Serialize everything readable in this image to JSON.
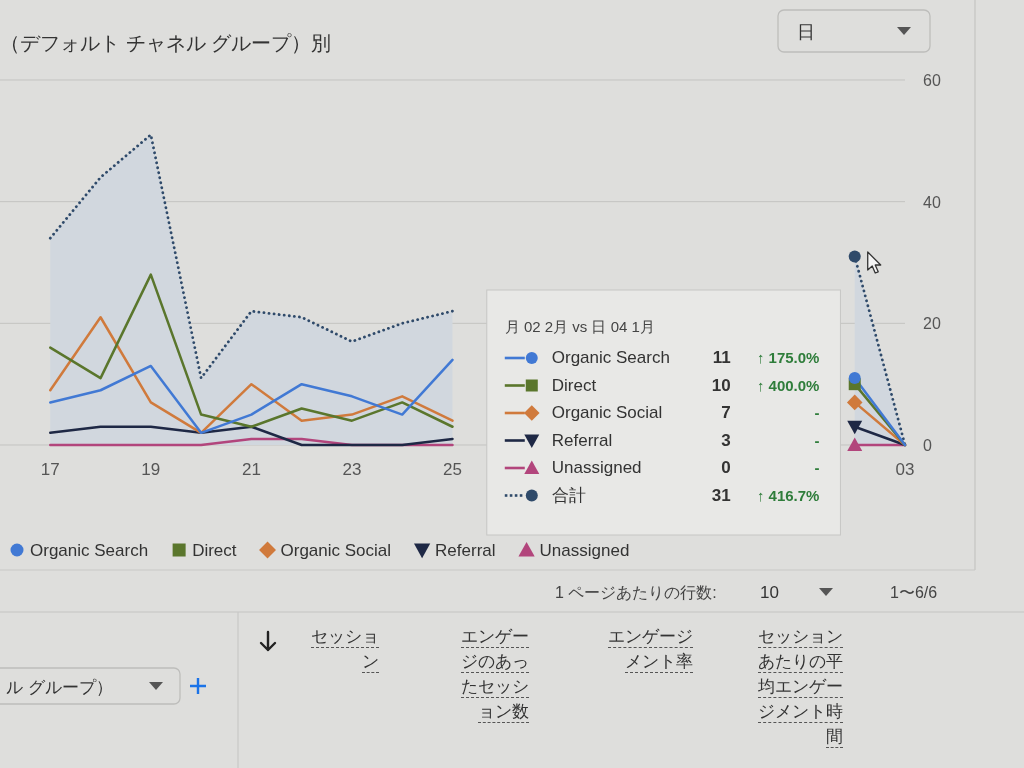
{
  "chart_data": {
    "type": "line",
    "title": "（デフォルト チャネル グループ）別",
    "x": [
      "--01-17",
      "--01-18",
      "--01-19",
      "--01-20",
      "--01-21",
      "--01-22",
      "--01-23",
      "--01-24",
      "--01-25",
      "--01-26",
      "--02-01",
      "--02-02",
      "--02-03"
    ],
    "xlim": [
      "--01-16",
      "--02-03"
    ],
    "xticks": [
      {
        "value": "--01-17",
        "label": "17"
      },
      {
        "value": "--01-19",
        "label": "19"
      },
      {
        "value": "--01-21",
        "label": "21"
      },
      {
        "value": "--01-23",
        "label": "23"
      },
      {
        "value": "--01-25",
        "label": "25"
      },
      {
        "value": "--02-03",
        "label": "03"
      }
    ],
    "series": [
      {
        "name": "Organic Search",
        "color": "#4179d4",
        "values": [
          7,
          9,
          13,
          2,
          5,
          10,
          8,
          5,
          14,
          null,
          null,
          11,
          0
        ]
      },
      {
        "name": "Direct",
        "color": "#5a762c",
        "values": [
          16,
          11,
          28,
          5,
          3,
          6,
          4,
          7,
          3,
          null,
          null,
          10,
          0
        ]
      },
      {
        "name": "Organic Social",
        "color": "#d07a3c",
        "values": [
          9,
          21,
          7,
          2,
          10,
          4,
          5,
          8,
          4,
          null,
          null,
          7,
          0
        ]
      },
      {
        "name": "Referral",
        "color": "#1e2845",
        "values": [
          2,
          3,
          3,
          2,
          3,
          0,
          0,
          0,
          1,
          null,
          null,
          3,
          0
        ]
      },
      {
        "name": "Unassigned",
        "color": "#b2457c",
        "values": [
          0,
          0,
          0,
          0,
          1,
          1,
          0,
          0,
          0,
          null,
          null,
          0,
          0
        ]
      },
      {
        "name": "合計",
        "type": "area",
        "color": "#2f4a6a",
        "line_style": "dotted",
        "values": [
          34,
          44,
          51,
          11,
          22,
          21,
          17,
          20,
          22,
          null,
          null,
          31,
          0
        ]
      },
      {
        "type": "scatter",
        "color": "#4179d4",
        "marker": "circle",
        "x": [
          "--02-02"
        ],
        "values": [
          11
        ]
      },
      {
        "type": "scatter",
        "color": "#5a762c",
        "marker": "square",
        "x": [
          "--02-02"
        ],
        "values": [
          10
        ]
      },
      {
        "type": "scatter",
        "color": "#d07a3c",
        "marker": "diamond",
        "x": [
          "--02-02"
        ],
        "values": [
          7
        ]
      },
      {
        "type": "scatter",
        "color": "#1e2845",
        "marker": "triangle-down",
        "x": [
          "--02-02"
        ],
        "values": [
          3
        ]
      },
      {
        "type": "scatter",
        "color": "#b2457c",
        "marker": "triangle",
        "x": [
          "--02-02"
        ],
        "values": [
          0
        ]
      },
      {
        "type": "scatter",
        "color": "#2f4a6a",
        "marker": "circle",
        "x": [
          "--02-02"
        ],
        "values": [
          31
        ]
      }
    ],
    "ylim": [
      0,
      60
    ],
    "yticks": [
      0,
      20,
      40,
      60
    ],
    "grid": "y",
    "legend": "bottom",
    "annotations": [
      "月 02 2月 vs 日 04 1月",
      "11",
      "↑ 175.0%",
      "10",
      "↑ 400.0%",
      "7",
      "-",
      "3",
      "-",
      "0",
      "-",
      "31",
      "↑ 416.7%",
      "日",
      "1 ページあたりの行数:",
      "10",
      "1〜6/6",
      "ル グループ）",
      "セッション",
      "エンゲージのあったセッション数",
      "エンゲージメント率",
      "セッションあたりの平均エンゲージメント時間"
    ]
  }
}
